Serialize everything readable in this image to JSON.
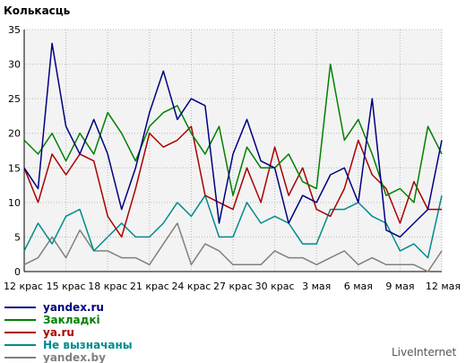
{
  "chart_data": {
    "type": "line",
    "title": "Колькасць",
    "xlabel": "",
    "ylabel": "",
    "ylim": [
      0,
      35
    ],
    "yticks": [
      0,
      5,
      10,
      15,
      20,
      25,
      30,
      35
    ],
    "grid": true,
    "legend_position": "bottom-left",
    "x_tick_labels": [
      "12 крас",
      "15 крас",
      "18 крас",
      "21 крас",
      "24 крас",
      "27 крас",
      "30 крас",
      "3 мая",
      "6 мая",
      "9 мая",
      "12 мая"
    ],
    "series": [
      {
        "name": "yandex.ru",
        "color": "#000080",
        "values": [
          15,
          12,
          33,
          21,
          17,
          22,
          17,
          9,
          15,
          23,
          29,
          22,
          25,
          24,
          7,
          17,
          22,
          16,
          15,
          7,
          11,
          10,
          14,
          15,
          10,
          25,
          6,
          5,
          7,
          9,
          19
        ]
      },
      {
        "name": "Закладкі",
        "color": "#008000",
        "values": [
          19,
          17,
          20,
          16,
          20,
          17,
          23,
          20,
          16,
          21,
          23,
          24,
          20,
          17,
          21,
          11,
          18,
          15,
          15,
          17,
          13,
          12,
          30,
          19,
          22,
          17,
          11,
          12,
          10,
          21,
          17
        ]
      },
      {
        "name": "ya.ru",
        "color": "#aa0000",
        "values": [
          15,
          10,
          17,
          14,
          17,
          16,
          8,
          5,
          12,
          20,
          18,
          19,
          21,
          11,
          10,
          9,
          15,
          10,
          18,
          11,
          15,
          9,
          8,
          12,
          19,
          14,
          12,
          7,
          13,
          9,
          9
        ]
      },
      {
        "name": "Не вызначаны",
        "color": "#008b8b",
        "values": [
          3,
          7,
          4,
          8,
          9,
          3,
          5,
          7,
          5,
          5,
          7,
          10,
          8,
          11,
          5,
          5,
          10,
          7,
          8,
          7,
          4,
          4,
          9,
          9,
          10,
          8,
          7,
          3,
          4,
          2,
          11
        ]
      },
      {
        "name": "yandex.by",
        "color": "#808080",
        "values": [
          1,
          2,
          5,
          2,
          6,
          3,
          3,
          2,
          2,
          1,
          4,
          7,
          1,
          4,
          3,
          1,
          1,
          1,
          3,
          2,
          2,
          1,
          2,
          3,
          1,
          2,
          1,
          1,
          1,
          0,
          3
        ]
      }
    ]
  },
  "footer": {
    "brand": "LiveInternet"
  }
}
